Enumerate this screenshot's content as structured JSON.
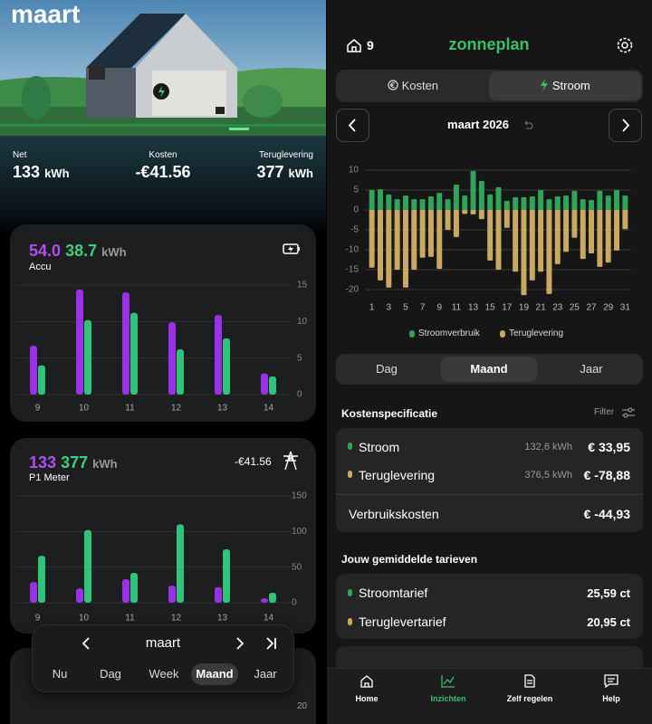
{
  "left": {
    "brand": "maart",
    "summary": [
      {
        "label": "Net",
        "value": "133",
        "unit": "kWh"
      },
      {
        "label": "Kosten",
        "value": "-€41.56"
      },
      {
        "label": "Teruglevering",
        "value": "377",
        "unit": "kWh"
      }
    ],
    "accu": {
      "primary": "54.0",
      "secondary": "38.7",
      "unit": "kWh",
      "label": "Accu",
      "chart": {
        "type": "bar",
        "categories": [
          "9",
          "10",
          "11",
          "12",
          "13",
          "14"
        ],
        "series": [
          {
            "color": "#9b30e6",
            "values": [
              6.7,
              14.4,
              14.0,
              9.9,
              10.9,
              2.9
            ]
          },
          {
            "color": "#2ec47a",
            "values": [
              4.0,
              10.2,
              11.2,
              6.2,
              7.7,
              2.5
            ]
          }
        ],
        "ylim": [
          0,
          15
        ],
        "yticks": [
          0,
          5,
          10,
          15
        ],
        "grid": true
      }
    },
    "p1": {
      "primary": "133",
      "secondary": "377",
      "unit": "kWh",
      "amount": "-€41.56",
      "label": "P1 Meter",
      "chart": {
        "type": "bar",
        "categories": [
          "9",
          "10",
          "11",
          "12",
          "13",
          "14"
        ],
        "series": [
          {
            "color": "#9b30e6",
            "values": [
              29,
              20,
              33,
              24,
              22,
              6
            ]
          },
          {
            "color": "#2ec47a",
            "values": [
              66,
              102,
              42,
              110,
              75,
              14
            ]
          }
        ],
        "ylim": [
          0,
          150
        ],
        "yticks": [
          0,
          50,
          100,
          150
        ],
        "grid": true
      }
    },
    "partial_card": {
      "ytick": 20
    },
    "period_nav": {
      "month": "maart",
      "tabs": [
        "Nu",
        "Dag",
        "Week",
        "Maand",
        "Jaar"
      ],
      "selected": 3
    }
  },
  "right": {
    "header": {
      "homes": "9",
      "brand": "zonneplan"
    },
    "toggle": {
      "options": [
        "Kosten",
        "Stroom"
      ],
      "selected": 1
    },
    "month": "maart 2026",
    "chart": {
      "type": "bar",
      "categories": [
        "1",
        null,
        "3",
        null,
        "5",
        null,
        "7",
        null,
        "9",
        null,
        "11",
        null,
        "13",
        null,
        "15",
        null,
        "17",
        null,
        "19",
        null,
        "21",
        null,
        "23",
        null,
        "25",
        null,
        "27",
        null,
        "29",
        null,
        "31"
      ],
      "series": [
        {
          "name": "Stroomverbruik",
          "color": "#2fa45a",
          "values": [
            5.0,
            5.2,
            3.9,
            2.7,
            3.6,
            2.7,
            2.7,
            3.4,
            4.3,
            2.7,
            6.4,
            3.6,
            9.8,
            7.3,
            3.9,
            5.7,
            2.3,
            3.2,
            3.2,
            3.4,
            5.0,
            2.7,
            3.4,
            3.6,
            4.8,
            2.7,
            2.5,
            4.8,
            3.6,
            5.0,
            3.6
          ]
        },
        {
          "name": "Teruglevering",
          "color": "#c9a862",
          "values": [
            -14.5,
            -17.7,
            -19.5,
            -15.0,
            -19.5,
            -15.0,
            -12.0,
            -11.8,
            -14.8,
            -5.0,
            -6.8,
            -1.0,
            -1.1,
            -2.3,
            -12.7,
            -15.0,
            -4.5,
            -15.5,
            -21.4,
            -17.7,
            -15.5,
            -21.1,
            -13.6,
            -10.5,
            -7.0,
            -12.3,
            -10.9,
            -14.3,
            -13.2,
            -10.2,
            -4.8
          ]
        }
      ],
      "ylim": [
        -22,
        12
      ],
      "yticks": [
        10,
        5,
        0,
        -5,
        -10,
        -15,
        -20
      ],
      "grid": true
    },
    "period_tabs": {
      "options": [
        "Dag",
        "Maand",
        "Jaar"
      ],
      "selected": 1
    },
    "cost_spec": {
      "title": "Kostenspecificatie",
      "filter": "Filter",
      "rows": [
        {
          "label": "Stroom",
          "amount": "132,6 kWh",
          "cost": "€ 33,95",
          "color": "#2fa45a"
        },
        {
          "label": "Teruglevering",
          "amount": "376,5 kWh",
          "cost": "€ -78,88",
          "color": "#c9a862"
        }
      ],
      "total": {
        "label": "Verbruikskosten",
        "cost": "€ -44,93"
      }
    },
    "tariffs": {
      "title": "Jouw gemiddelde tarieven",
      "rows": [
        {
          "label": "Stroomtarief",
          "value": "25,59 ct",
          "color": "#2fa45a"
        },
        {
          "label": "Teruglevertarief",
          "value": "20,95 ct",
          "color": "#c9a862"
        }
      ]
    },
    "nav": {
      "items": [
        "Home",
        "Inzichten",
        "Zelf regelen",
        "Help"
      ],
      "selected": 1
    }
  }
}
